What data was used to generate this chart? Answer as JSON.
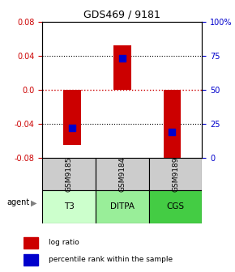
{
  "title": "GDS469 / 9181",
  "samples": [
    "GSM9185",
    "GSM9184",
    "GSM9189"
  ],
  "agents": [
    "T3",
    "DITPA",
    "CGS"
  ],
  "log_ratios": [
    -0.065,
    0.052,
    -0.09
  ],
  "percentile_ranks": [
    0.22,
    0.73,
    0.19
  ],
  "ylim": [
    -0.08,
    0.08
  ],
  "yticks_left": [
    -0.08,
    -0.04,
    0.0,
    0.04,
    0.08
  ],
  "yticks_right_vals": [
    0,
    25,
    50,
    75,
    100
  ],
  "yticks_right_pos": [
    -0.08,
    -0.04,
    0.0,
    0.04,
    0.08
  ],
  "bar_color": "#cc0000",
  "dot_color": "#0000cc",
  "bar_width": 0.35,
  "dot_size": 40,
  "agent_colors": [
    "#ccffcc",
    "#99ee99",
    "#44cc44"
  ],
  "sample_color": "#cccccc",
  "zero_line_color": "#cc0000",
  "title_color": "#000000",
  "left_tick_color": "#cc0000",
  "right_tick_color": "#0000cc",
  "legend_log_ratio_color": "#cc0000",
  "legend_percentile_color": "#0000cc"
}
